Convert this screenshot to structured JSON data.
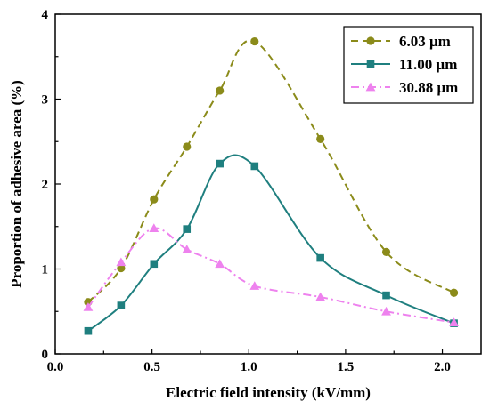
{
  "chart_data": {
    "type": "line",
    "xlabel": "Electric field intensity (kV/mm)",
    "ylabel": "Proportion of adhesive area (%)",
    "xlim": [
      0.0,
      2.2
    ],
    "ylim": [
      0,
      4
    ],
    "xticks": [
      "0.0",
      "0.5",
      "1.0",
      "1.5",
      "2.0"
    ],
    "yticks": [
      "0",
      "1",
      "2",
      "3",
      "4"
    ],
    "legend_position": "top-right",
    "grid": false,
    "series": [
      {
        "name": "6.03 μm",
        "color": "#8b8b1a",
        "marker": "circle",
        "dash": "dashed",
        "x": [
          0.17,
          0.34,
          0.51,
          0.68,
          0.85,
          1.03,
          1.37,
          1.71,
          2.06
        ],
        "y": [
          0.61,
          1.01,
          1.82,
          2.44,
          3.1,
          3.68,
          2.53,
          1.2,
          0.72
        ]
      },
      {
        "name": "11.00 μm",
        "color": "#1f7f7f",
        "marker": "square",
        "dash": "solid",
        "x": [
          0.17,
          0.34,
          0.51,
          0.68,
          0.85,
          1.03,
          1.37,
          1.71,
          2.06
        ],
        "y": [
          0.27,
          0.57,
          1.06,
          1.47,
          2.24,
          2.21,
          1.13,
          0.69,
          0.36
        ]
      },
      {
        "name": "30.88 μm",
        "color": "#ee82ee",
        "marker": "triangle",
        "dash": "dashdot",
        "x": [
          0.17,
          0.34,
          0.51,
          0.68,
          0.85,
          1.03,
          1.37,
          1.71,
          2.06
        ],
        "y": [
          0.55,
          1.08,
          1.48,
          1.23,
          1.06,
          0.8,
          0.67,
          0.5,
          0.37
        ]
      }
    ]
  }
}
